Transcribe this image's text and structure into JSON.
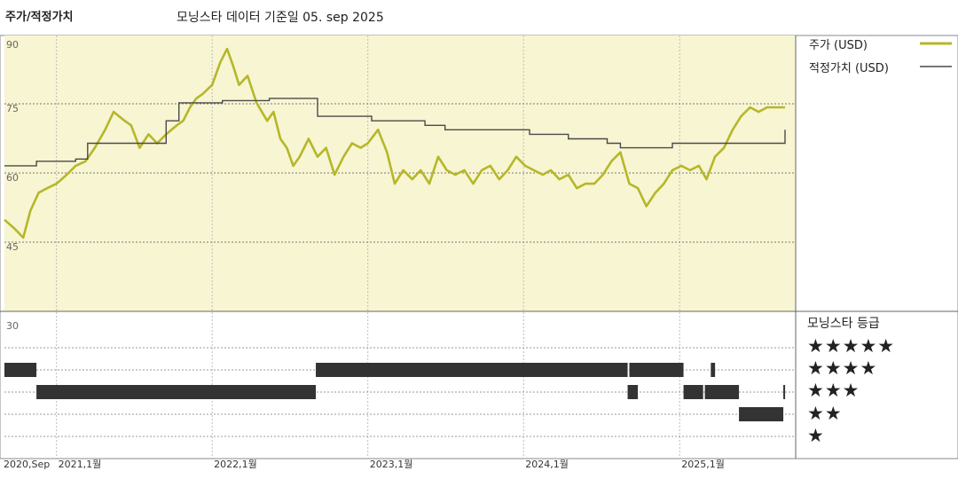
{
  "header": {
    "title": "주가/적정가치",
    "subtitle": "모닝스타 데이터 기준일 05. sep 2025"
  },
  "legend": {
    "price_label": "주가 (USD)",
    "fair_value_label": "적정가치 (USD)",
    "rating_title": "모닝스타 등급",
    "stars": [
      "★★★★★",
      "★★★★",
      "★★★",
      "★★",
      "★"
    ]
  },
  "colors": {
    "price_line": "#b5b72a",
    "fair_value_line": "#4a4a4a",
    "plot_bg": "#f8f5d2",
    "grid": "#bdbdbd",
    "rating_bars": "#333333"
  },
  "chart_data": {
    "type": "line",
    "ylim": [
      30,
      93
    ],
    "y_ticks": [
      {
        "value": 90,
        "label": "90"
      },
      {
        "value": 75,
        "label": "75"
      },
      {
        "value": 60,
        "label": "60"
      },
      {
        "value": 45,
        "label": "45"
      },
      {
        "value": 30,
        "label": "30"
      }
    ],
    "x_range": [
      "2020-09-01",
      "2025-09-05"
    ],
    "x_ticks": [
      {
        "date": "2020-09-01",
        "label": "2020,Sep"
      },
      {
        "date": "2021-01-01",
        "label": "2021,1월"
      },
      {
        "date": "2022-01-01",
        "label": "2022,1월"
      },
      {
        "date": "2023-01-01",
        "label": "2023,1월"
      },
      {
        "date": "2024-01-01",
        "label": "2024,1월"
      },
      {
        "date": "2025-01-01",
        "label": "2025,1월"
      }
    ],
    "series": [
      {
        "name": "주가 (USD)",
        "style": "line",
        "points": [
          [
            "2020-09-01",
            50
          ],
          [
            "2020-09-25",
            48
          ],
          [
            "2020-10-15",
            46
          ],
          [
            "2020-11-01",
            52
          ],
          [
            "2020-11-20",
            56
          ],
          [
            "2020-12-10",
            57
          ],
          [
            "2021-01-01",
            58
          ],
          [
            "2021-01-25",
            60
          ],
          [
            "2021-02-15",
            62
          ],
          [
            "2021-03-10",
            63
          ],
          [
            "2021-04-01",
            66
          ],
          [
            "2021-04-25",
            70
          ],
          [
            "2021-05-15",
            74
          ],
          [
            "2021-06-10",
            72
          ],
          [
            "2021-06-25",
            71
          ],
          [
            "2021-07-15",
            66
          ],
          [
            "2021-08-05",
            69
          ],
          [
            "2021-08-25",
            67
          ],
          [
            "2021-09-15",
            69
          ],
          [
            "2021-10-10",
            71
          ],
          [
            "2021-10-25",
            72
          ],
          [
            "2021-11-10",
            75
          ],
          [
            "2021-11-25",
            77
          ],
          [
            "2021-12-10",
            78
          ],
          [
            "2022-01-01",
            80
          ],
          [
            "2022-01-20",
            85
          ],
          [
            "2022-02-05",
            88
          ],
          [
            "2022-02-20",
            84
          ],
          [
            "2022-03-05",
            80
          ],
          [
            "2022-03-25",
            82
          ],
          [
            "2022-04-15",
            76
          ],
          [
            "2022-05-10",
            72
          ],
          [
            "2022-05-25",
            74
          ],
          [
            "2022-06-10",
            68
          ],
          [
            "2022-06-25",
            66
          ],
          [
            "2022-07-10",
            62
          ],
          [
            "2022-07-25",
            64
          ],
          [
            "2022-08-15",
            68
          ],
          [
            "2022-09-05",
            64
          ],
          [
            "2022-09-25",
            66
          ],
          [
            "2022-10-15",
            60
          ],
          [
            "2022-11-05",
            64
          ],
          [
            "2022-11-25",
            67
          ],
          [
            "2022-12-15",
            66
          ],
          [
            "2023-01-01",
            67
          ],
          [
            "2023-01-25",
            70
          ],
          [
            "2023-02-15",
            65
          ],
          [
            "2023-03-05",
            58
          ],
          [
            "2023-03-25",
            61
          ],
          [
            "2023-04-15",
            59
          ],
          [
            "2023-05-05",
            61
          ],
          [
            "2023-05-25",
            58
          ],
          [
            "2023-06-15",
            64
          ],
          [
            "2023-07-05",
            61
          ],
          [
            "2023-07-25",
            60
          ],
          [
            "2023-08-15",
            61
          ],
          [
            "2023-09-05",
            58
          ],
          [
            "2023-09-25",
            61
          ],
          [
            "2023-10-15",
            62
          ],
          [
            "2023-11-05",
            59
          ],
          [
            "2023-11-25",
            61
          ],
          [
            "2023-12-15",
            64
          ],
          [
            "2024-01-05",
            62
          ],
          [
            "2024-01-25",
            61
          ],
          [
            "2024-02-15",
            60
          ],
          [
            "2024-03-05",
            61
          ],
          [
            "2024-03-25",
            59
          ],
          [
            "2024-04-15",
            60
          ],
          [
            "2024-05-05",
            57
          ],
          [
            "2024-05-25",
            58
          ],
          [
            "2024-06-15",
            58
          ],
          [
            "2024-07-05",
            60
          ],
          [
            "2024-07-25",
            63
          ],
          [
            "2024-08-15",
            65
          ],
          [
            "2024-09-05",
            58
          ],
          [
            "2024-09-25",
            57
          ],
          [
            "2024-10-15",
            53
          ],
          [
            "2024-11-05",
            56
          ],
          [
            "2024-11-25",
            58
          ],
          [
            "2024-12-15",
            61
          ],
          [
            "2025-01-05",
            62
          ],
          [
            "2025-01-25",
            61
          ],
          [
            "2025-02-15",
            62
          ],
          [
            "2025-03-05",
            59
          ],
          [
            "2025-03-25",
            64
          ],
          [
            "2025-04-15",
            66
          ],
          [
            "2025-05-05",
            70
          ],
          [
            "2025-05-25",
            73
          ],
          [
            "2025-06-15",
            75
          ],
          [
            "2025-07-05",
            74
          ],
          [
            "2025-07-25",
            75
          ],
          [
            "2025-08-15",
            75
          ],
          [
            "2025-09-05",
            75
          ]
        ]
      },
      {
        "name": "적정가치 (USD)",
        "style": "step",
        "points": [
          [
            "2020-09-01",
            62
          ],
          [
            "2020-11-15",
            63
          ],
          [
            "2021-02-15",
            63.5
          ],
          [
            "2021-03-15",
            67
          ],
          [
            "2021-09-15",
            72
          ],
          [
            "2021-10-15",
            76
          ],
          [
            "2022-01-25",
            76.5
          ],
          [
            "2022-05-15",
            77
          ],
          [
            "2022-09-05",
            73
          ],
          [
            "2023-01-10",
            72
          ],
          [
            "2023-05-15",
            71
          ],
          [
            "2023-07-01",
            70
          ],
          [
            "2024-01-15",
            69
          ],
          [
            "2024-04-15",
            68
          ],
          [
            "2024-07-15",
            67
          ],
          [
            "2024-08-15",
            66
          ],
          [
            "2024-12-15",
            67
          ],
          [
            "2025-08-25",
            67
          ],
          [
            "2025-09-05",
            70
          ]
        ]
      }
    ],
    "rating_periods": [
      {
        "stars": 5,
        "spans": []
      },
      {
        "stars": 4,
        "spans": [
          [
            "2020-09-01",
            "2020-11-15"
          ],
          [
            "2022-09-01",
            "2024-09-01"
          ],
          [
            "2024-09-05",
            "2025-01-10"
          ],
          [
            "2025-03-15",
            "2025-03-25"
          ]
        ]
      },
      {
        "stars": 3,
        "spans": [
          [
            "2020-11-15",
            "2022-09-01"
          ],
          [
            "2024-09-01",
            "2024-09-25"
          ],
          [
            "2025-01-10",
            "2025-02-25"
          ],
          [
            "2025-03-01",
            "2025-05-20"
          ],
          [
            "2025-09-01",
            "2025-09-05"
          ]
        ]
      },
      {
        "stars": 2,
        "spans": [
          [
            "2025-05-20",
            "2025-09-01"
          ]
        ]
      },
      {
        "stars": 1,
        "spans": []
      }
    ]
  }
}
